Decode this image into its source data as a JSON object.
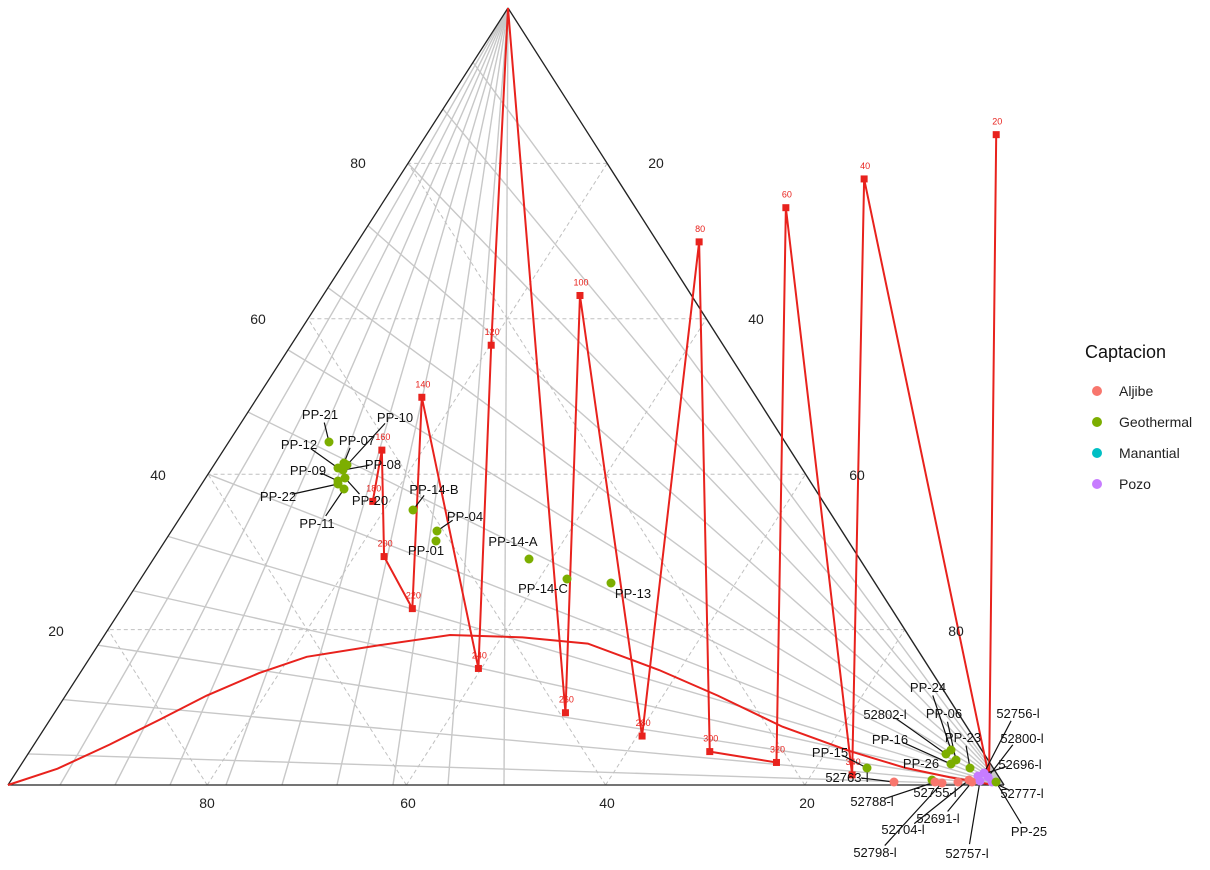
{
  "chart_data": {
    "type": "scatter",
    "subtype": "ternary",
    "grid": true,
    "legend_placement": "right",
    "legend": {
      "title": "Captacion",
      "entries": [
        {
          "label": "Aljibe",
          "color": "#F8766D"
        },
        {
          "label": "Geothermal",
          "color": "#7CAE00"
        },
        {
          "label": "Manantial",
          "color": "#00BFC4"
        },
        {
          "label": "Pozo",
          "color": "#C77CFF"
        }
      ]
    },
    "tick_labels": {
      "bottom": [
        "80",
        "60",
        "40",
        "20"
      ],
      "left": [
        "20",
        "40",
        "60",
        "80"
      ],
      "right": [
        "20",
        "40",
        "60",
        "80"
      ]
    },
    "temperature_labels": [
      "20",
      "40",
      "60",
      "80",
      "100",
      "120",
      "140",
      "160",
      "180",
      "200",
      "220",
      "240",
      "260",
      "280",
      "300",
      "320",
      "340"
    ],
    "curve_point_coords": [
      [
        1.3,
        84.1
      ],
      [
        2.9,
        75.7
      ],
      [
        4.3,
        68.3
      ],
      [
        6.3,
        60.5
      ],
      [
        9.3,
        51.3
      ],
      [
        15.0,
        39.7
      ],
      [
        22.7,
        29.2
      ],
      [
        29.4,
        23.0
      ],
      [
        36.5,
        18.3
      ],
      [
        43.1,
        15.9
      ],
      [
        49.9,
        16.5
      ],
      [
        56.6,
        20.1
      ],
      [
        63.0,
        25.8
      ],
      [
        69.9,
        34.3
      ],
      [
        74.3,
        40.8
      ],
      [
        78.0,
        46.8
      ],
      [
        83.7,
        57.2
      ]
    ],
    "samples": [
      {
        "label": "PP-21",
        "group": "Geothermal",
        "a": 63.0,
        "b": 20.1
      },
      {
        "label": "PP-10",
        "group": "Geothermal",
        "a": 55.7,
        "b": 24.6
      },
      {
        "label": "PP-12",
        "group": "Geothermal",
        "a": 54.6,
        "b": 25.7
      },
      {
        "label": "PP-07",
        "group": "Geothermal",
        "a": 55.0,
        "b": 24.9
      },
      {
        "label": "PP-08",
        "group": "Geothermal",
        "a": 54.0,
        "b": 25.6
      },
      {
        "label": "PP-09",
        "group": "Geothermal",
        "a": 53.1,
        "b": 25.9
      },
      {
        "label": "PP-22",
        "group": "Geothermal",
        "a": 52.6,
        "b": 26.3
      },
      {
        "label": "PP-20",
        "group": "Geothermal",
        "a": 54.1,
        "b": 25.4
      },
      {
        "label": "PP-11",
        "group": "Geothermal",
        "a": 53.4,
        "b": 25.4
      },
      {
        "label": "PP-14-B",
        "group": "Geothermal",
        "a": 41.4,
        "b": 31.3
      },
      {
        "label": "PP-04",
        "group": "Geothermal",
        "a": 37.6,
        "b": 33.6
      },
      {
        "label": "PP-01",
        "group": "Geothermal",
        "a": 37.0,
        "b": 34.3
      },
      {
        "label": "PP-14-A",
        "group": "Geothermal",
        "a": 28.0,
        "b": 40.3
      },
      {
        "label": "PP-14-C",
        "group": "Geothermal",
        "a": 24.4,
        "b": 43.6
      },
      {
        "label": "PP-13",
        "group": "Geothermal",
        "a": 18.9,
        "b": 47.4
      },
      {
        "label": "PP-24",
        "group": "Geothermal",
        "a": 1.3,
        "b": 84.1
      },
      {
        "label": "52802-l",
        "group": "Geothermal",
        "a": 1.0,
        "b": 85.2
      },
      {
        "label": "PP-06",
        "group": "Geothermal",
        "a": 1.2,
        "b": 86.0
      },
      {
        "label": "PP-23",
        "group": "Geothermal",
        "a": 0.7,
        "b": 87.0
      },
      {
        "label": "PP-16",
        "group": "Geothermal",
        "a": 1.5,
        "b": 84.4
      },
      {
        "label": "PP-15",
        "group": "Geothermal",
        "a": 5.0,
        "b": 72.3
      },
      {
        "label": "PP-26",
        "group": "Geothermal",
        "a": 1.2,
        "b": 83.5
      },
      {
        "label": "52756-l",
        "group": "Pozo",
        "a": 0.4,
        "b": 88.0
      },
      {
        "label": "52800-l",
        "group": "Pozo",
        "a": 0.3,
        "b": 88.7
      },
      {
        "label": "52696-l",
        "group": "Pozo",
        "a": 0.5,
        "b": 87.6
      },
      {
        "label": "52777-l",
        "group": "Pozo",
        "a": 0.2,
        "b": 89.4
      },
      {
        "label": "PP-25",
        "group": "Geothermal",
        "a": 0.2,
        "b": 89.8
      },
      {
        "label": "52763-l",
        "group": "Aljibe",
        "a": 0.5,
        "b": 77.5
      },
      {
        "label": "52788-l",
        "group": "Aljibe",
        "a": 0.4,
        "b": 81.5
      },
      {
        "label": "52755-l",
        "group": "Aljibe",
        "a": 0.3,
        "b": 83.3
      },
      {
        "label": "52704-l",
        "group": "Aljibe",
        "a": 0.6,
        "b": 85.1
      },
      {
        "label": "52798-l",
        "group": "Aljibe",
        "a": 0.4,
        "b": 82.6
      },
      {
        "label": "52691-l",
        "group": "Aljibe",
        "a": 0.3,
        "b": 86.0
      },
      {
        "label": "52757-l",
        "group": "Pozo",
        "a": 0.3,
        "b": 87.4
      }
    ]
  }
}
